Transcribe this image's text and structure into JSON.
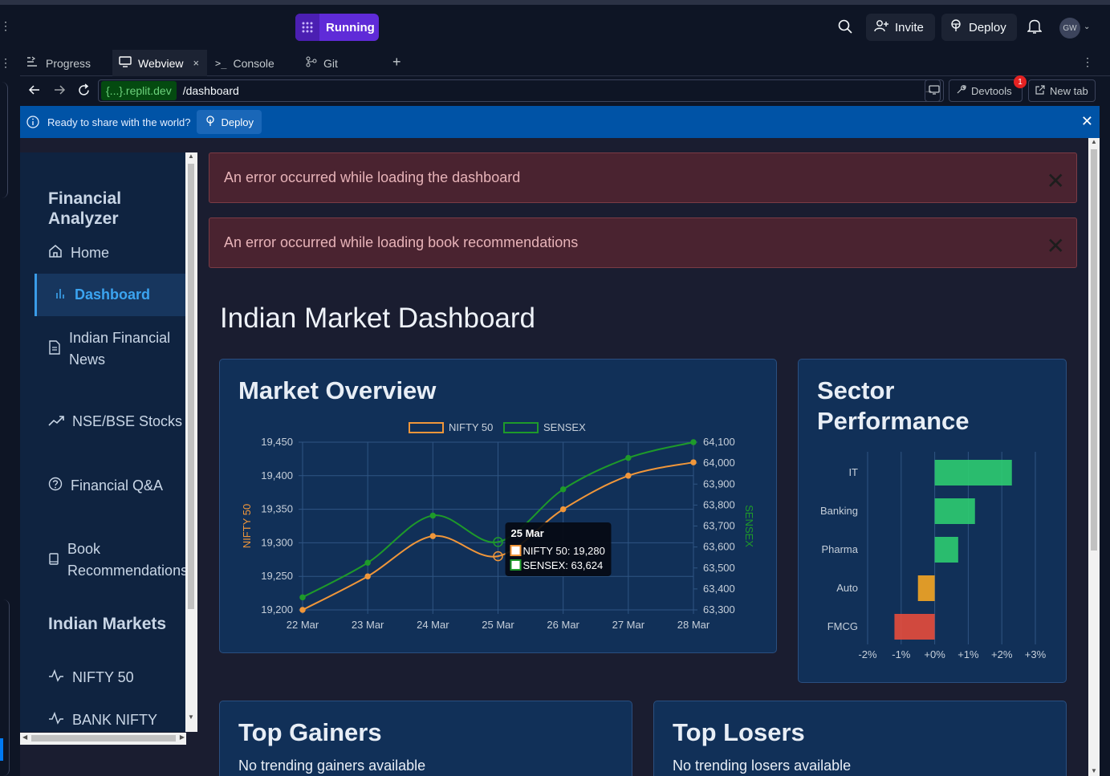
{
  "topbar": {
    "run_label": "Running",
    "invite_label": "Invite",
    "deploy_label": "Deploy",
    "avatar_initials": "GW"
  },
  "tabs": [
    {
      "label": "Progress"
    },
    {
      "label": "Webview"
    },
    {
      "label": "Console"
    },
    {
      "label": "Git"
    }
  ],
  "urlbar": {
    "domain": "{...}.replit.dev",
    "path": "/dashboard",
    "devtools_label": "Devtools",
    "devtools_badge": "1",
    "newtab_label": "New tab"
  },
  "banner": {
    "text": "Ready to share with the world?",
    "deploy_label": "Deploy"
  },
  "sidebar": {
    "brand": "Financial Analyzer",
    "items": [
      {
        "label": "Home",
        "icon": "home-icon"
      },
      {
        "label": "Dashboard",
        "icon": "bar-chart-icon"
      },
      {
        "label": "Indian Financial News",
        "icon": "document-icon"
      },
      {
        "label": "NSE/BSE Stocks",
        "icon": "trend-icon"
      },
      {
        "label": "Financial Q&A",
        "icon": "help-icon"
      },
      {
        "label": "Book Recommendations",
        "icon": "book-icon"
      }
    ],
    "section2": "Indian Markets",
    "markets": [
      {
        "label": "NIFTY 50",
        "icon": "pulse-icon"
      },
      {
        "label": "BANK NIFTY",
        "icon": "pulse-icon"
      }
    ]
  },
  "errors": [
    "An error occurred while loading the dashboard",
    "An error occurred while loading book recommendations"
  ],
  "page": {
    "title": "Indian Market Dashboard",
    "market_title": "Market Overview",
    "sector_title": "Sector Performance",
    "gainers_title": "Top Gainers",
    "gainers_empty": "No trending gainers available",
    "losers_title": "Top Losers",
    "losers_empty": "No trending losers available"
  },
  "tooltip": {
    "date": "25 Mar",
    "nifty": "NIFTY 50: 19,280",
    "sensex": "SENSEX: 63,624"
  },
  "colors": {
    "nifty": "#f0963a",
    "sensex": "#1e9a2a",
    "sector_positive": "#2ecc71",
    "sector_warn": "#f5a623",
    "sector_negative": "#e74c3c"
  },
  "chart_data": [
    {
      "type": "line",
      "categories": [
        "22 Mar",
        "23 Mar",
        "24 Mar",
        "25 Mar",
        "26 Mar",
        "27 Mar",
        "28 Mar"
      ],
      "series": [
        {
          "name": "NIFTY 50",
          "axis": "left",
          "values": [
            19200,
            19250,
            19310,
            19280,
            19350,
            19400,
            19420
          ]
        },
        {
          "name": "SENSEX",
          "axis": "right",
          "values": [
            63360,
            63525,
            63750,
            63624,
            63875,
            64025,
            64100
          ]
        }
      ],
      "ylabel": "NIFTY 50",
      "y2label": "SENSEX",
      "ylim": [
        19200,
        19450
      ],
      "y2lim": [
        63300,
        64100
      ],
      "yticks": [
        "19,200",
        "19,250",
        "19,300",
        "19,350",
        "19,400",
        "19,450"
      ],
      "y2ticks": [
        "63,300",
        "63,400",
        "63,500",
        "63,600",
        "63,700",
        "63,800",
        "63,900",
        "64,000",
        "64,100"
      ],
      "legend": "top"
    },
    {
      "type": "bar",
      "orientation": "horizontal",
      "categories": [
        "IT",
        "Banking",
        "Pharma",
        "Auto",
        "FMCG"
      ],
      "values": [
        2.3,
        1.2,
        0.7,
        -0.5,
        -1.2
      ],
      "xlim": [
        -2,
        3
      ],
      "xticks": [
        "-2%",
        "-1%",
        "+0%",
        "+1%",
        "+2%",
        "+3%"
      ]
    }
  ]
}
